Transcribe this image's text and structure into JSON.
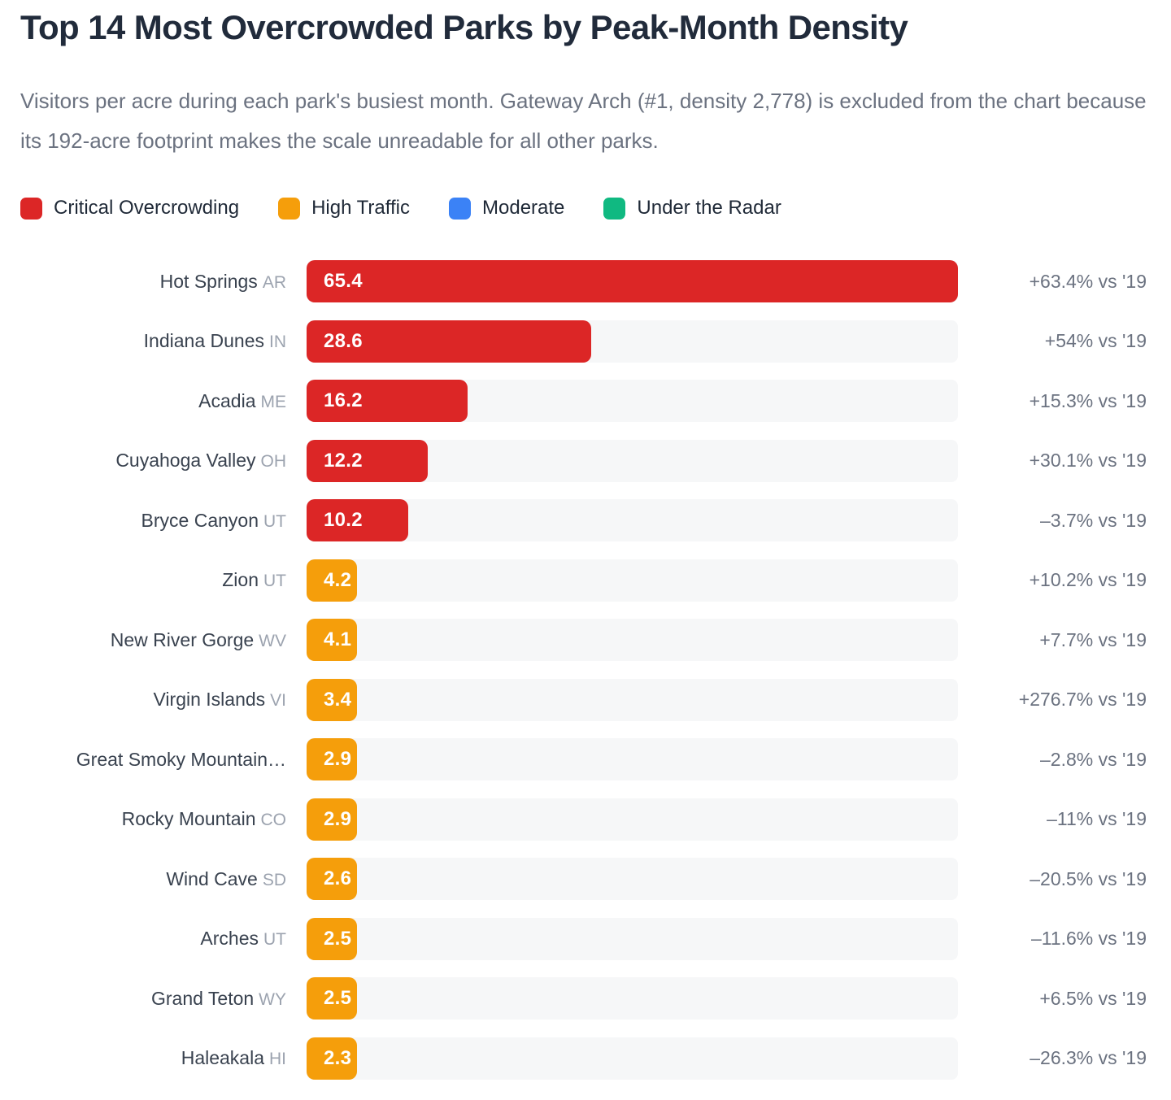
{
  "header": {
    "title": "Top 14 Most Overcrowded Parks by Peak-Month Density",
    "subtitle": "Visitors per acre during each park's busiest month. Gateway Arch (#1, density 2,778) is excluded from the chart because its 192-acre footprint makes the scale unreadable for all other parks."
  },
  "colors": {
    "critical": "#DC2626",
    "high": "#F59E0B",
    "moderate": "#3B82F6",
    "under_radar": "#10B981",
    "track": "#F6F7F8"
  },
  "legend": [
    {
      "key": "critical",
      "label": "Critical Overcrowding"
    },
    {
      "key": "high",
      "label": "High Traffic"
    },
    {
      "key": "moderate",
      "label": "Moderate"
    },
    {
      "key": "under_radar",
      "label": "Under the Radar"
    }
  ],
  "chart_data": {
    "type": "bar",
    "orientation": "horizontal",
    "title": "Top 14 Most Overcrowded Parks by Peak-Month Density",
    "value_label_position": "inside-bar-left",
    "x_range": [
      0,
      65.4
    ],
    "grid": false,
    "legend_position": "top",
    "bars": [
      {
        "park": "Hot Springs",
        "state": "AR",
        "value": 65.4,
        "change": "+63.4% vs '19",
        "category": "critical"
      },
      {
        "park": "Indiana Dunes",
        "state": "IN",
        "value": 28.6,
        "change": "+54% vs '19",
        "category": "critical"
      },
      {
        "park": "Acadia",
        "state": "ME",
        "value": 16.2,
        "change": "+15.3% vs '19",
        "category": "critical"
      },
      {
        "park": "Cuyahoga Valley",
        "state": "OH",
        "value": 12.2,
        "change": "+30.1% vs '19",
        "category": "critical"
      },
      {
        "park": "Bryce Canyon",
        "state": "UT",
        "value": 10.2,
        "change": "–3.7% vs '19",
        "category": "critical"
      },
      {
        "park": "Zion",
        "state": "UT",
        "value": 4.2,
        "change": "+10.2% vs '19",
        "category": "high"
      },
      {
        "park": "New River Gorge",
        "state": "WV",
        "value": 4.1,
        "change": "+7.7% vs '19",
        "category": "high"
      },
      {
        "park": "Virgin Islands",
        "state": "VI",
        "value": 3.4,
        "change": "+276.7% vs '19",
        "category": "high"
      },
      {
        "park": "Great Smoky Mountain…",
        "state": "",
        "value": 2.9,
        "change": "–2.8% vs '19",
        "category": "high"
      },
      {
        "park": "Rocky Mountain",
        "state": "CO",
        "value": 2.9,
        "change": "–11% vs '19",
        "category": "high"
      },
      {
        "park": "Wind Cave",
        "state": "SD",
        "value": 2.6,
        "change": "–20.5% vs '19",
        "category": "high"
      },
      {
        "park": "Arches",
        "state": "UT",
        "value": 2.5,
        "change": "–11.6% vs '19",
        "category": "high"
      },
      {
        "park": "Grand Teton",
        "state": "WY",
        "value": 2.5,
        "change": "+6.5% vs '19",
        "category": "high"
      },
      {
        "park": "Haleakala",
        "state": "HI",
        "value": 2.3,
        "change": "–26.3% vs '19",
        "category": "high"
      }
    ]
  }
}
